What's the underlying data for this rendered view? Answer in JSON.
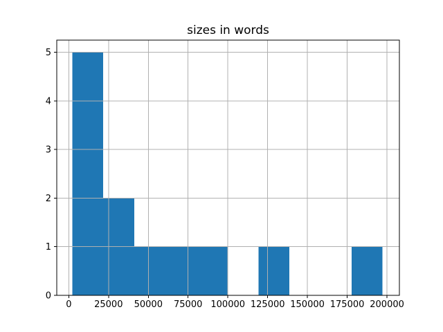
{
  "figure": {
    "background": "#ffffff"
  },
  "chart_data": {
    "type": "histogram",
    "title": "sizes in words",
    "xlabel": "",
    "ylabel": "",
    "bin_edges": [
      2200,
      21700,
      41200,
      60700,
      80200,
      99700,
      119200,
      138700,
      158200,
      177700,
      197200
    ],
    "counts": [
      5,
      2,
      1,
      1,
      1,
      0,
      1,
      0,
      0,
      1
    ],
    "xticks": [
      0,
      25000,
      50000,
      75000,
      100000,
      125000,
      150000,
      175000,
      200000
    ],
    "xtick_labels": [
      "0",
      "25000",
      "50000",
      "75000",
      "100000",
      "125000",
      "150000",
      "175000",
      "200000"
    ],
    "yticks": [
      0,
      1,
      2,
      3,
      4,
      5
    ],
    "ytick_labels": [
      "0",
      "1",
      "2",
      "3",
      "4",
      "5"
    ],
    "xlim": [
      -7550,
      207800
    ],
    "ylim": [
      0,
      5.25
    ],
    "grid": true,
    "grid_over_bars": true,
    "legend": "none",
    "bar_color": "#1f77b4",
    "grid_color": "#b0b0b0",
    "spine_color": "#000000",
    "text_color": "#000000"
  }
}
